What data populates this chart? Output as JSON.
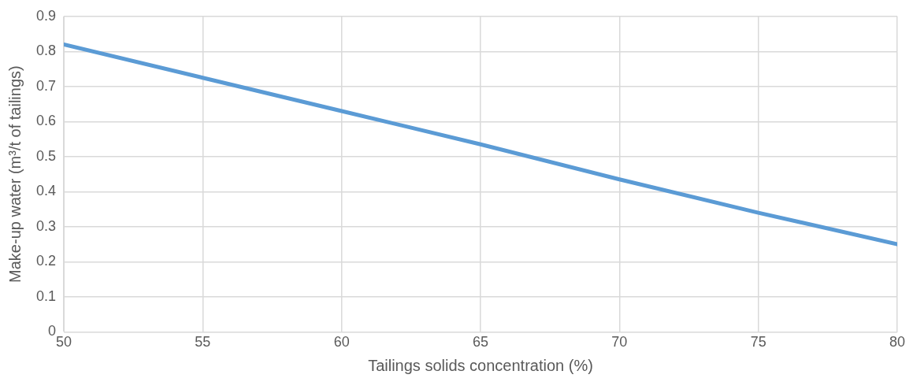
{
  "chart_data": {
    "type": "line",
    "xlabel": "Tailings solids concentration (%)",
    "ylabel": "Make-up water (m³/t of tailings)",
    "x": [
      50,
      55,
      60,
      65,
      70,
      75,
      80
    ],
    "series": [
      {
        "color": "#5b9bd5",
        "values": [
          0.82,
          0.725,
          0.63,
          0.535,
          0.435,
          0.34,
          0.25
        ]
      }
    ],
    "xlim": [
      50,
      80
    ],
    "xticks": [
      50,
      55,
      60,
      65,
      70,
      75,
      80
    ],
    "ylim": [
      0,
      0.9
    ],
    "yticks": [
      0,
      0.1,
      0.2,
      0.3,
      0.4,
      0.5,
      0.6,
      0.7,
      0.8,
      0.9
    ],
    "grid": true,
    "legend": false,
    "marker": "none",
    "line_style": "solid"
  }
}
